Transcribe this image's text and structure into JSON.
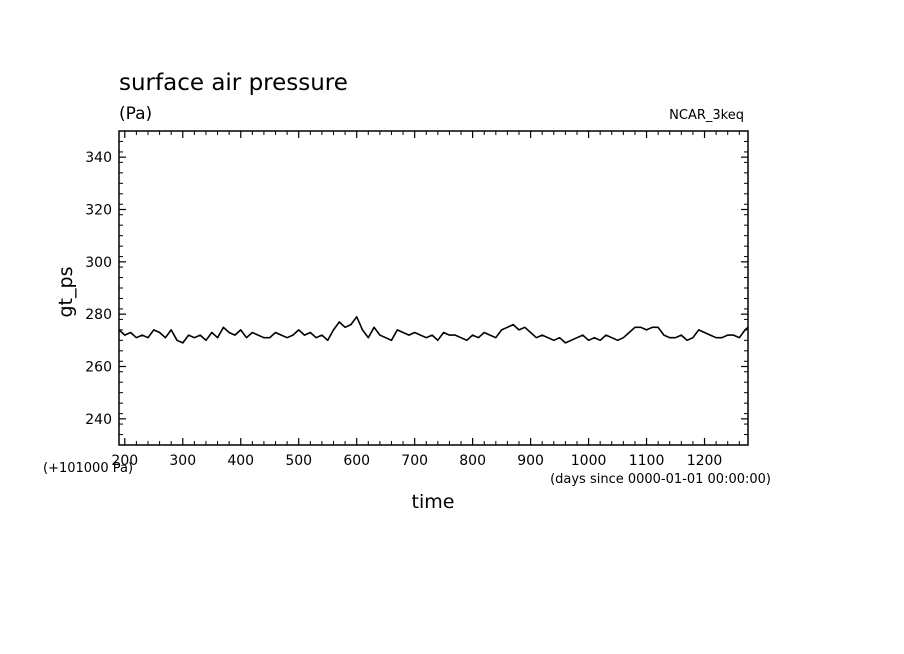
{
  "chart_data": {
    "type": "line",
    "title": "surface air pressure",
    "units_label": "(Pa)",
    "source_label": "NCAR_3keq",
    "ylabel": "gt_ps",
    "xlabel": "time",
    "x_units_note": "(days since 0000-01-01 00:00:00)",
    "y_offset_note": "(+101000 Pa)",
    "xlim": [
      190,
      1275
    ],
    "ylim": [
      230,
      350
    ],
    "xticks": [
      200,
      300,
      400,
      500,
      600,
      700,
      800,
      900,
      1000,
      1100,
      1200
    ],
    "yticks": [
      240,
      260,
      280,
      300,
      320,
      340
    ],
    "grid": false,
    "legend": "none",
    "line_color": "#000000",
    "series": [
      {
        "x": [
          190,
          200,
          210,
          220,
          230,
          240,
          250,
          260,
          270,
          280,
          290,
          300,
          310,
          320,
          330,
          340,
          350,
          360,
          370,
          380,
          390,
          400,
          410,
          420,
          430,
          440,
          450,
          460,
          470,
          480,
          490,
          500,
          510,
          520,
          530,
          540,
          550,
          560,
          570,
          580,
          590,
          600,
          610,
          620,
          630,
          640,
          650,
          660,
          670,
          680,
          690,
          700,
          710,
          720,
          730,
          740,
          750,
          760,
          770,
          780,
          790,
          800,
          810,
          820,
          830,
          840,
          850,
          860,
          870,
          880,
          890,
          900,
          910,
          920,
          930,
          940,
          950,
          960,
          970,
          980,
          990,
          1000,
          1010,
          1020,
          1030,
          1040,
          1050,
          1060,
          1070,
          1080,
          1090,
          1100,
          1110,
          1120,
          1130,
          1140,
          1150,
          1160,
          1170,
          1180,
          1190,
          1200,
          1210,
          1220,
          1230,
          1240,
          1250,
          1260,
          1270,
          1275
        ],
        "y": [
          274,
          272,
          273,
          271,
          272,
          271,
          274,
          273,
          271,
          274,
          270,
          269,
          272,
          271,
          272,
          270,
          273,
          271,
          275,
          273,
          272,
          274,
          271,
          273,
          272,
          271,
          271,
          273,
          272,
          271,
          272,
          274,
          272,
          273,
          271,
          272,
          270,
          274,
          277,
          275,
          276,
          279,
          274,
          271,
          275,
          272,
          271,
          270,
          274,
          273,
          272,
          273,
          272,
          271,
          272,
          270,
          273,
          272,
          272,
          271,
          270,
          272,
          271,
          273,
          272,
          271,
          274,
          275,
          276,
          274,
          275,
          273,
          271,
          272,
          271,
          270,
          271,
          269,
          270,
          271,
          272,
          270,
          271,
          270,
          272,
          271,
          270,
          271,
          273,
          275,
          275,
          274,
          275,
          275,
          272,
          271,
          271,
          272,
          270,
          271,
          274,
          273,
          272,
          271,
          271,
          272,
          272,
          271,
          274,
          275
        ]
      }
    ]
  }
}
